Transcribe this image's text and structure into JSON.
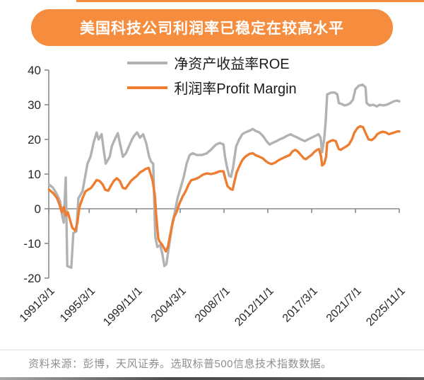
{
  "title": "美国科技公司利润率已稳定在较高水平",
  "source": "资料来源：彭博，天风证券。选取标普500信息技术指数数据。",
  "colors": {
    "banner_orange": "#f68c3d",
    "roe_gray": "#b2b2b2",
    "margin_orange": "#ed7d31",
    "axis_gray": "#8a8a8a",
    "tick_text": "#262626",
    "source_text": "#8f8f8f"
  },
  "chart_data": {
    "type": "line",
    "title": "美国科技公司利润率已稳定在较高水平",
    "xlabel": "",
    "ylabel": "",
    "ylim": [
      -20,
      40
    ],
    "grid": false,
    "legend_position": "top",
    "y_ticks": [
      40,
      30,
      20,
      10,
      0,
      -10,
      -20
    ],
    "x_ticks": [
      {
        "label": "1991/3/1",
        "t": 1991.17
      },
      {
        "label": "1995/3/1",
        "t": 1995.17
      },
      {
        "label": "1999/11/1",
        "t": 1999.83
      },
      {
        "label": "2004/3/1",
        "t": 2004.17
      },
      {
        "label": "2008/7/1",
        "t": 2008.5
      },
      {
        "label": "2012/11/1",
        "t": 2012.83
      },
      {
        "label": "2017/3/1",
        "t": 2017.17
      },
      {
        "label": "2021/7/1",
        "t": 2021.5
      },
      {
        "label": "2025/11/1",
        "t": 2025.83
      }
    ],
    "series": [
      {
        "name": "净资产收益率ROE",
        "color": "#b2b2b2",
        "points": [
          [
            1991.2,
            7
          ],
          [
            1991.6,
            6
          ],
          [
            1992.0,
            4
          ],
          [
            1992.3,
            2
          ],
          [
            1992.5,
            -2
          ],
          [
            1992.65,
            -4
          ],
          [
            1992.85,
            9
          ],
          [
            1993.0,
            -16.5
          ],
          [
            1993.4,
            -17
          ],
          [
            1993.6,
            -7
          ],
          [
            1993.9,
            -6.5
          ],
          [
            1994.1,
            3
          ],
          [
            1994.5,
            5
          ],
          [
            1995.0,
            13
          ],
          [
            1995.3,
            15
          ],
          [
            1995.6,
            19
          ],
          [
            1995.9,
            22
          ],
          [
            1996.1,
            20
          ],
          [
            1996.4,
            21.5
          ],
          [
            1996.6,
            17
          ],
          [
            1996.8,
            13
          ],
          [
            1997.2,
            15
          ],
          [
            1997.4,
            18
          ],
          [
            1997.7,
            20
          ],
          [
            1998.0,
            21.8
          ],
          [
            1998.2,
            19
          ],
          [
            1998.5,
            15
          ],
          [
            1998.8,
            16
          ],
          [
            1999.1,
            18
          ],
          [
            1999.4,
            20
          ],
          [
            1999.6,
            21
          ],
          [
            1999.9,
            22
          ],
          [
            2000.2,
            20.5
          ],
          [
            2000.5,
            21.5
          ],
          [
            2000.8,
            19
          ],
          [
            2001.1,
            15
          ],
          [
            2001.3,
            13.5
          ],
          [
            2001.5,
            13
          ],
          [
            2001.7,
            -8
          ],
          [
            2001.9,
            -11
          ],
          [
            2002.2,
            -10.5
          ],
          [
            2002.4,
            -13
          ],
          [
            2002.6,
            -16.5
          ],
          [
            2002.8,
            -16
          ],
          [
            2003.0,
            -12
          ],
          [
            2003.2,
            -8
          ],
          [
            2003.4,
            -4
          ],
          [
            2003.6,
            -1.5
          ],
          [
            2003.9,
            3
          ],
          [
            2004.2,
            6
          ],
          [
            2004.5,
            9
          ],
          [
            2004.8,
            13
          ],
          [
            2005.1,
            15.5
          ],
          [
            2005.4,
            16
          ],
          [
            2005.8,
            15.5
          ],
          [
            2006.3,
            15.5
          ],
          [
            2006.8,
            16
          ],
          [
            2007.2,
            17
          ],
          [
            2007.7,
            18.5
          ],
          [
            2008.1,
            19
          ],
          [
            2008.45,
            18.5
          ],
          [
            2008.6,
            15
          ],
          [
            2008.8,
            12
          ],
          [
            2009.0,
            9.5
          ],
          [
            2009.2,
            9.2
          ],
          [
            2009.4,
            12
          ],
          [
            2009.7,
            18
          ],
          [
            2010.0,
            20
          ],
          [
            2010.3,
            21.5
          ],
          [
            2010.6,
            22
          ],
          [
            2011.0,
            22.5
          ],
          [
            2011.35,
            23
          ],
          [
            2011.6,
            22.5
          ],
          [
            2012.0,
            22
          ],
          [
            2012.35,
            21
          ],
          [
            2012.7,
            19.5
          ],
          [
            2013.0,
            18.5
          ],
          [
            2013.3,
            19
          ],
          [
            2013.7,
            19.5
          ],
          [
            2014.0,
            20
          ],
          [
            2014.4,
            20.5
          ],
          [
            2014.7,
            21
          ],
          [
            2015.1,
            21.5
          ],
          [
            2015.4,
            21
          ],
          [
            2015.8,
            20.5
          ],
          [
            2016.1,
            20
          ],
          [
            2016.5,
            19.5
          ],
          [
            2016.8,
            20
          ],
          [
            2017.15,
            20.5
          ],
          [
            2017.5,
            21
          ],
          [
            2017.85,
            21.5
          ],
          [
            2018.05,
            20.5
          ],
          [
            2018.2,
            16.3
          ],
          [
            2018.4,
            20
          ],
          [
            2018.55,
            25
          ],
          [
            2018.7,
            33
          ],
          [
            2019.1,
            33.5
          ],
          [
            2019.45,
            33.5
          ],
          [
            2019.7,
            33
          ],
          [
            2019.85,
            30.5
          ],
          [
            2020.15,
            30.2
          ],
          [
            2020.4,
            29.8
          ],
          [
            2020.7,
            30
          ],
          [
            2021.0,
            30.5
          ],
          [
            2021.25,
            31.5
          ],
          [
            2021.5,
            34.5
          ],
          [
            2021.85,
            35.5
          ],
          [
            2022.2,
            35.8
          ],
          [
            2022.5,
            35
          ],
          [
            2022.6,
            30.5
          ],
          [
            2022.9,
            29.8
          ],
          [
            2023.25,
            30
          ],
          [
            2023.6,
            29.5
          ],
          [
            2023.9,
            30
          ],
          [
            2024.25,
            29.8
          ],
          [
            2024.6,
            30
          ],
          [
            2024.95,
            30.5
          ],
          [
            2025.3,
            31
          ],
          [
            2025.6,
            31.2
          ],
          [
            2025.83,
            31
          ]
        ]
      },
      {
        "name": "利润率Profit Margin",
        "color": "#ed7d31",
        "points": [
          [
            1991.2,
            5.5
          ],
          [
            1991.6,
            4.5
          ],
          [
            1992.0,
            3
          ],
          [
            1992.25,
            1
          ],
          [
            1992.45,
            -1
          ],
          [
            1992.65,
            0.5
          ],
          [
            1992.85,
            -2
          ],
          [
            1993.05,
            -1
          ],
          [
            1993.25,
            -3
          ],
          [
            1993.5,
            -5.5
          ],
          [
            1993.8,
            -6.3
          ],
          [
            1994.0,
            -4
          ],
          [
            1994.2,
            0.5
          ],
          [
            1994.5,
            3
          ],
          [
            1994.8,
            5
          ],
          [
            1995.05,
            5.5
          ],
          [
            1995.35,
            6
          ],
          [
            1995.6,
            7
          ],
          [
            1995.9,
            8.3
          ],
          [
            1996.2,
            8
          ],
          [
            1996.5,
            7
          ],
          [
            1996.75,
            5.5
          ],
          [
            1997.05,
            5.2
          ],
          [
            1997.3,
            6.5
          ],
          [
            1997.6,
            8
          ],
          [
            1997.9,
            8.8
          ],
          [
            1998.2,
            8
          ],
          [
            1998.5,
            6
          ],
          [
            1998.75,
            5.8
          ],
          [
            1999.05,
            7
          ],
          [
            1999.3,
            8
          ],
          [
            1999.6,
            8.8
          ],
          [
            1999.9,
            9.5
          ],
          [
            2000.2,
            10.5
          ],
          [
            2000.5,
            11
          ],
          [
            2000.75,
            11.5
          ],
          [
            2001.05,
            11.8
          ],
          [
            2001.25,
            10
          ],
          [
            2001.45,
            8
          ],
          [
            2001.65,
            4
          ],
          [
            2001.8,
            -2
          ],
          [
            2002.0,
            -8.6
          ],
          [
            2002.15,
            -9.5
          ],
          [
            2002.4,
            -10.5
          ],
          [
            2002.6,
            -11.5
          ],
          [
            2002.75,
            -12.3
          ],
          [
            2002.95,
            -11
          ],
          [
            2003.15,
            -8
          ],
          [
            2003.35,
            -5
          ],
          [
            2003.55,
            -2.5
          ],
          [
            2003.8,
            -1
          ],
          [
            2004.1,
            1.5
          ],
          [
            2004.4,
            3.5
          ],
          [
            2004.7,
            5
          ],
          [
            2005.0,
            7
          ],
          [
            2005.25,
            8.2
          ],
          [
            2005.6,
            8.5
          ],
          [
            2006.0,
            9
          ],
          [
            2006.4,
            9.8
          ],
          [
            2006.8,
            10.2
          ],
          [
            2007.2,
            10
          ],
          [
            2007.65,
            10.3
          ],
          [
            2008.05,
            10.8
          ],
          [
            2008.45,
            10.8
          ],
          [
            2008.65,
            8.5
          ],
          [
            2008.85,
            6.5
          ],
          [
            2009.15,
            5.7
          ],
          [
            2009.35,
            5.5
          ],
          [
            2009.55,
            8
          ],
          [
            2009.75,
            10.5
          ],
          [
            2010.05,
            12.5
          ],
          [
            2010.3,
            14
          ],
          [
            2010.6,
            15
          ],
          [
            2011.0,
            15.8
          ],
          [
            2011.35,
            16
          ],
          [
            2011.6,
            15.5
          ],
          [
            2012.0,
            15
          ],
          [
            2012.35,
            14.5
          ],
          [
            2012.6,
            13.8
          ],
          [
            2012.9,
            13.2
          ],
          [
            2013.2,
            12.9
          ],
          [
            2013.55,
            13.3
          ],
          [
            2013.9,
            14
          ],
          [
            2014.25,
            14.5
          ],
          [
            2014.6,
            15
          ],
          [
            2015.0,
            15.5
          ],
          [
            2015.25,
            16.5
          ],
          [
            2015.55,
            17
          ],
          [
            2015.8,
            16.5
          ],
          [
            2016.1,
            15.5
          ],
          [
            2016.4,
            14.5
          ],
          [
            2016.6,
            14.3
          ],
          [
            2016.9,
            15
          ],
          [
            2017.15,
            15.5
          ],
          [
            2017.4,
            16.3
          ],
          [
            2017.7,
            17
          ],
          [
            2017.9,
            17.2
          ],
          [
            2018.1,
            15
          ],
          [
            2018.2,
            12.5
          ],
          [
            2018.4,
            13
          ],
          [
            2018.6,
            15
          ],
          [
            2018.7,
            19
          ],
          [
            2019.0,
            19.5
          ],
          [
            2019.25,
            19.8
          ],
          [
            2019.55,
            19.5
          ],
          [
            2019.85,
            17.2
          ],
          [
            2020.05,
            17
          ],
          [
            2020.3,
            17.5
          ],
          [
            2020.6,
            18
          ],
          [
            2020.85,
            18.5
          ],
          [
            2021.15,
            20
          ],
          [
            2021.4,
            22
          ],
          [
            2021.7,
            23.3
          ],
          [
            2021.95,
            23.8
          ],
          [
            2022.25,
            23.5
          ],
          [
            2022.55,
            21.5
          ],
          [
            2022.8,
            20
          ],
          [
            2023.1,
            19.8
          ],
          [
            2023.4,
            20.5
          ],
          [
            2023.65,
            21.5
          ],
          [
            2023.95,
            22
          ],
          [
            2024.2,
            22.2
          ],
          [
            2024.5,
            22
          ],
          [
            2024.8,
            21.5
          ],
          [
            2025.1,
            21.8
          ],
          [
            2025.35,
            22
          ],
          [
            2025.65,
            22.3
          ],
          [
            2025.83,
            22.3
          ]
        ]
      }
    ]
  }
}
